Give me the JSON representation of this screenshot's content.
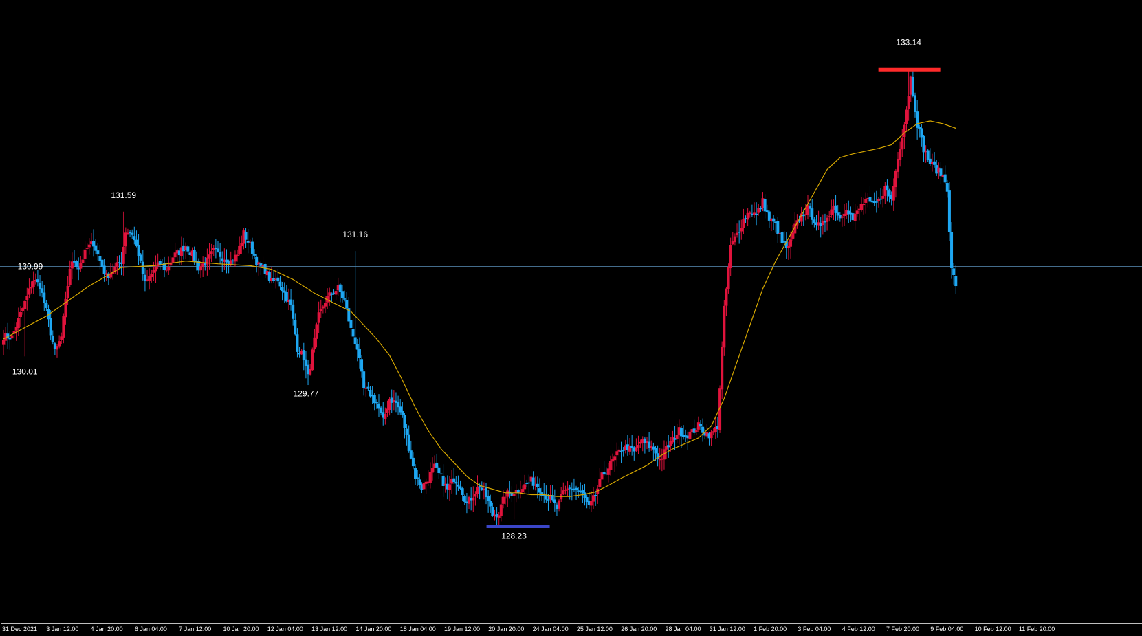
{
  "colors": {
    "background": "#000000",
    "bull": "#e0133c",
    "bear": "#1ea7f2",
    "ma": "#d7a800",
    "ref_line": "#5b8fb9",
    "high_marker": "#ff2a2a",
    "low_marker": "#3b46c8",
    "text": "#ffffff",
    "frame": "#bfbfbf"
  },
  "chart_data": {
    "type": "candlestick",
    "ylim": [
      127.1,
      133.9
    ],
    "grid": false,
    "x_tick_labels": [
      "31 Dec 2021",
      "3 Jan 12:00",
      "4 Jan 20:00",
      "6 Jan 04:00",
      "7 Jan 12:00",
      "10 Jan 20:00",
      "12 Jan 04:00",
      "13 Jan 12:00",
      "14 Jan 20:00",
      "18 Jan 04:00",
      "19 Jan 12:00",
      "20 Jan 20:00",
      "24 Jan 04:00",
      "25 Jan 12:00",
      "26 Jan 20:00",
      "28 Jan 04:00",
      "31 Jan 12:00",
      "1 Feb 20:00",
      "3 Feb 04:00",
      "4 Feb 12:00",
      "7 Feb 20:00",
      "9 Feb 04:00",
      "10 Feb 12:00",
      "11 Feb 20:00"
    ],
    "reference_line": {
      "value": 130.99,
      "label": "130.99"
    },
    "annotations": [
      {
        "label": "131.59",
        "value": 131.59,
        "kind": "swing-high"
      },
      {
        "label": "130.01",
        "value": 130.01,
        "kind": "swing-low"
      },
      {
        "label": "129.77",
        "value": 129.77,
        "kind": "swing-low"
      },
      {
        "label": "131.16",
        "value": 131.16,
        "kind": "swing-high"
      },
      {
        "label": "128.23",
        "value": 128.23,
        "kind": "period-low"
      },
      {
        "label": "133.14",
        "value": 133.14,
        "kind": "period-high"
      }
    ],
    "close_path": [
      [
        0,
        130.23
      ],
      [
        4,
        130.22
      ],
      [
        8,
        130.47
      ],
      [
        14,
        130.85
      ],
      [
        17,
        130.78
      ],
      [
        20,
        130.5
      ],
      [
        24,
        130.05
      ],
      [
        27,
        130.22
      ],
      [
        31,
        130.98
      ],
      [
        33,
        131.05
      ],
      [
        35,
        130.98
      ],
      [
        39,
        131.19
      ],
      [
        42,
        131.25
      ],
      [
        45,
        131.05
      ],
      [
        48,
        130.88
      ],
      [
        51,
        130.95
      ],
      [
        55,
        131.05
      ],
      [
        57,
        131.38
      ],
      [
        60,
        131.35
      ],
      [
        63,
        131.13
      ],
      [
        66,
        130.8
      ],
      [
        70,
        130.95
      ],
      [
        73,
        131.02
      ],
      [
        76,
        130.95
      ],
      [
        79,
        131.1
      ],
      [
        82,
        131.15
      ],
      [
        85,
        131.22
      ],
      [
        88,
        131.12
      ],
      [
        91,
        130.98
      ],
      [
        95,
        131.05
      ],
      [
        98,
        131.16
      ],
      [
        102,
        131.1
      ],
      [
        106,
        131.05
      ],
      [
        109,
        131.12
      ],
      [
        112,
        131.35
      ],
      [
        115,
        131.22
      ],
      [
        119,
        131.0
      ],
      [
        122,
        130.95
      ],
      [
        125,
        130.82
      ],
      [
        128,
        130.85
      ],
      [
        131,
        130.7
      ],
      [
        134,
        130.55
      ],
      [
        137,
        130.1
      ],
      [
        140,
        130.0
      ],
      [
        142,
        129.78
      ],
      [
        144,
        130.05
      ],
      [
        147,
        130.45
      ],
      [
        150,
        130.62
      ],
      [
        153,
        130.7
      ],
      [
        156,
        130.75
      ],
      [
        159,
        130.62
      ],
      [
        162,
        130.3
      ],
      [
        165,
        130.1
      ],
      [
        168,
        129.65
      ],
      [
        171,
        129.6
      ],
      [
        174,
        129.5
      ],
      [
        177,
        129.3
      ],
      [
        180,
        129.55
      ],
      [
        183,
        129.5
      ],
      [
        186,
        129.35
      ],
      [
        189,
        129.02
      ],
      [
        192,
        128.7
      ],
      [
        195,
        128.58
      ],
      [
        198,
        128.68
      ],
      [
        201,
        128.8
      ],
      [
        204,
        128.68
      ],
      [
        207,
        128.55
      ],
      [
        210,
        128.68
      ],
      [
        213,
        128.6
      ],
      [
        216,
        128.4
      ],
      [
        219,
        128.5
      ],
      [
        222,
        128.6
      ],
      [
        225,
        128.48
      ],
      [
        228,
        128.28
      ],
      [
        231,
        128.3
      ],
      [
        234,
        128.5
      ],
      [
        237,
        128.52
      ],
      [
        240,
        128.55
      ],
      [
        243,
        128.6
      ],
      [
        246,
        128.65
      ],
      [
        249,
        128.6
      ],
      [
        252,
        128.5
      ],
      [
        255,
        128.45
      ],
      [
        258,
        128.35
      ],
      [
        261,
        128.52
      ],
      [
        264,
        128.58
      ],
      [
        267,
        128.55
      ],
      [
        270,
        128.5
      ],
      [
        273,
        128.35
      ],
      [
        276,
        128.5
      ],
      [
        279,
        128.7
      ],
      [
        282,
        128.8
      ],
      [
        285,
        128.9
      ],
      [
        288,
        129.0
      ],
      [
        291,
        129.02
      ],
      [
        294,
        128.96
      ],
      [
        297,
        129.08
      ],
      [
        300,
        129.05
      ],
      [
        303,
        129.0
      ],
      [
        306,
        128.88
      ],
      [
        309,
        129.0
      ],
      [
        312,
        129.1
      ],
      [
        315,
        129.2
      ],
      [
        318,
        129.15
      ],
      [
        321,
        129.18
      ],
      [
        324,
        129.25
      ],
      [
        327,
        129.18
      ],
      [
        330,
        129.15
      ],
      [
        333,
        129.25
      ],
      [
        336,
        130.52
      ],
      [
        339,
        131.2
      ],
      [
        342,
        131.35
      ],
      [
        345,
        131.5
      ],
      [
        348,
        131.6
      ],
      [
        351,
        131.55
      ],
      [
        354,
        131.7
      ],
      [
        357,
        131.5
      ],
      [
        360,
        131.45
      ],
      [
        363,
        131.25
      ],
      [
        366,
        131.18
      ],
      [
        369,
        131.42
      ],
      [
        372,
        131.55
      ],
      [
        375,
        131.62
      ],
      [
        378,
        131.5
      ],
      [
        381,
        131.4
      ],
      [
        384,
        131.55
      ],
      [
        387,
        131.65
      ],
      [
        390,
        131.52
      ],
      [
        393,
        131.65
      ],
      [
        396,
        131.5
      ],
      [
        399,
        131.62
      ],
      [
        402,
        131.72
      ],
      [
        405,
        131.65
      ],
      [
        408,
        131.7
      ],
      [
        411,
        131.85
      ],
      [
        414,
        131.72
      ],
      [
        417,
        132.2
      ],
      [
        420,
        132.55
      ],
      [
        423,
        133.05
      ],
      [
        426,
        132.55
      ],
      [
        429,
        132.28
      ],
      [
        432,
        132.12
      ],
      [
        435,
        132.05
      ],
      [
        438,
        131.98
      ],
      [
        440,
        131.85
      ],
      [
        442,
        130.95
      ],
      [
        444,
        130.8
      ]
    ],
    "ma_path": [
      [
        0,
        130.2
      ],
      [
        20,
        130.45
      ],
      [
        40,
        130.78
      ],
      [
        55,
        130.98
      ],
      [
        70,
        131.0
      ],
      [
        85,
        131.05
      ],
      [
        100,
        131.02
      ],
      [
        115,
        131.0
      ],
      [
        125,
        130.96
      ],
      [
        135,
        130.85
      ],
      [
        145,
        130.7
      ],
      [
        155,
        130.58
      ],
      [
        162,
        130.5
      ],
      [
        168,
        130.35
      ],
      [
        174,
        130.2
      ],
      [
        180,
        130.02
      ],
      [
        186,
        129.75
      ],
      [
        192,
        129.45
      ],
      [
        198,
        129.2
      ],
      [
        204,
        129.0
      ],
      [
        210,
        128.85
      ],
      [
        216,
        128.7
      ],
      [
        222,
        128.6
      ],
      [
        228,
        128.56
      ],
      [
        234,
        128.52
      ],
      [
        240,
        128.52
      ],
      [
        246,
        128.5
      ],
      [
        252,
        128.5
      ],
      [
        258,
        128.48
      ],
      [
        264,
        128.48
      ],
      [
        270,
        128.5
      ],
      [
        276,
        128.53
      ],
      [
        282,
        128.6
      ],
      [
        288,
        128.68
      ],
      [
        294,
        128.75
      ],
      [
        300,
        128.82
      ],
      [
        306,
        128.92
      ],
      [
        312,
        129.0
      ],
      [
        318,
        129.06
      ],
      [
        324,
        129.12
      ],
      [
        330,
        129.25
      ],
      [
        336,
        129.55
      ],
      [
        342,
        129.95
      ],
      [
        348,
        130.35
      ],
      [
        354,
        130.75
      ],
      [
        360,
        131.05
      ],
      [
        366,
        131.3
      ],
      [
        372,
        131.55
      ],
      [
        378,
        131.8
      ],
      [
        384,
        132.05
      ],
      [
        390,
        132.18
      ],
      [
        396,
        132.22
      ],
      [
        402,
        132.25
      ],
      [
        408,
        132.28
      ],
      [
        414,
        132.32
      ],
      [
        420,
        132.45
      ],
      [
        426,
        132.55
      ],
      [
        432,
        132.58
      ],
      [
        438,
        132.55
      ],
      [
        444,
        132.5
      ]
    ],
    "peak_bars": [
      [
        10,
        130.01
      ],
      [
        56,
        131.59
      ],
      [
        141,
        129.77
      ],
      [
        164,
        131.16
      ],
      [
        238,
        128.23
      ],
      [
        422,
        133.14
      ]
    ]
  }
}
